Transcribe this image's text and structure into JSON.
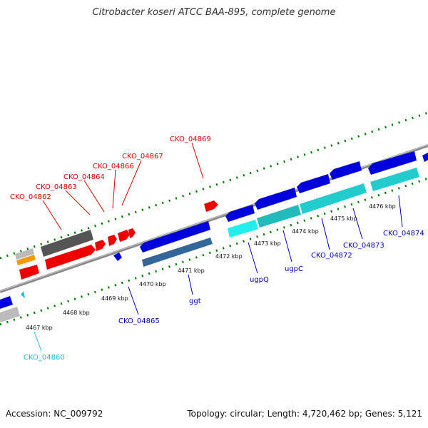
{
  "title": "Citrobacter koseri ATCC BAA-895, complete genome",
  "footer": {
    "accession": "Accession: NC_009792",
    "summary": "Topology: circular; Length: 4,720,462 bp; Genes: 5,121"
  },
  "colors": {
    "forward_label": "#dd0000",
    "reverse_label": "#0000bb",
    "rna_label": "#22bbdd",
    "forward_gene": "#ee0000",
    "reverse_gene": "#0000dd",
    "reverse_cds": "#22cccc",
    "pseudo": "#555555",
    "tick": "#007700",
    "backbone": "#888888"
  },
  "scale": {
    "ticks": [
      {
        "label": "4467 kbp"
      },
      {
        "label": "4468 kbp"
      },
      {
        "label": "4469 kbp"
      },
      {
        "label": "4470 kbp"
      },
      {
        "label": "4471 kbp"
      },
      {
        "label": "4472 kbp"
      },
      {
        "label": "4473 kbp"
      },
      {
        "label": "4474 kbp"
      },
      {
        "label": "4475 kbp"
      },
      {
        "label": "4476 kbp"
      }
    ]
  },
  "labels": {
    "forward": [
      {
        "text": "CKO_04862"
      },
      {
        "text": "CKO_04863"
      },
      {
        "text": "CKO_04864"
      },
      {
        "text": "CKO_04866"
      },
      {
        "text": "CKO_04867"
      },
      {
        "text": "CKO_04869"
      }
    ],
    "reverse": [
      {
        "text": "CKO_04865"
      },
      {
        "text": "ggt"
      },
      {
        "text": "ugpQ"
      },
      {
        "text": "ugpC"
      },
      {
        "text": "CKO_04872"
      },
      {
        "text": "CKO_04873"
      },
      {
        "text": "CKO_04874"
      }
    ],
    "rna": [
      {
        "text": "CKO_04860"
      }
    ]
  }
}
